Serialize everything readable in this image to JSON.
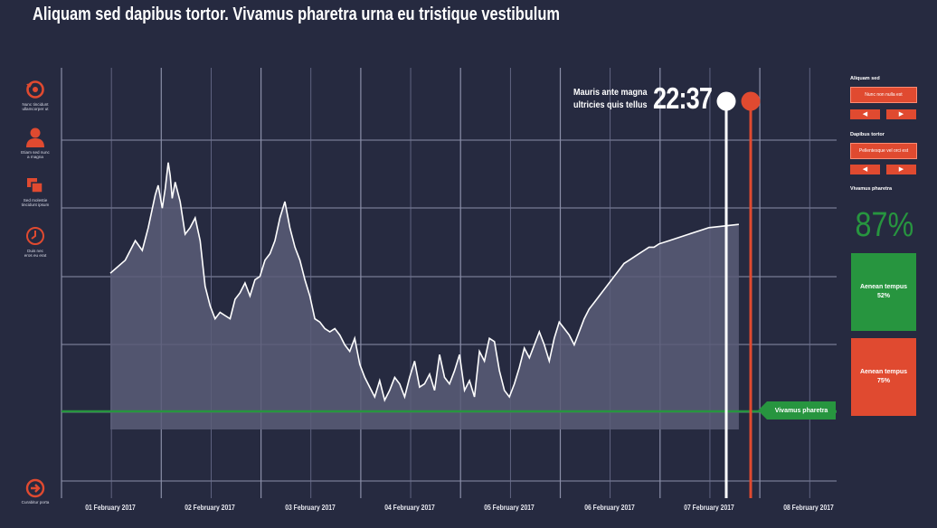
{
  "title": "Aliquam sed dapibus tortor. Vivamus pharetra urna eu tristique vestibulum",
  "left_nav": {
    "items": [
      {
        "icon": "restore-icon",
        "label_1": "Nunc tincidunt",
        "label_2": "ullamcorper ut"
      },
      {
        "icon": "user-icon",
        "label_1": "Etiam sed nunc",
        "label_2": "a magna"
      },
      {
        "icon": "windows-icon",
        "label_1": "Sed molestie",
        "label_2": "tincidunt ipsum"
      },
      {
        "icon": "clock-icon",
        "label_1": "Duis nec",
        "label_2": "eros eu erat"
      }
    ],
    "bottom": {
      "icon": "arrow-right-circle-icon",
      "label": "Curabitur porta"
    }
  },
  "chart_data": {
    "type": "area",
    "title": "",
    "xlabel": "",
    "ylabel": "",
    "x_tick_labels": [
      "01 February 2017",
      "02 February 2017",
      "03 February 2017",
      "04 February 2017",
      "05 February 2017",
      "06 February 2017",
      "07 February 2017",
      "08 February 2017"
    ],
    "grid": true,
    "y_axis_labels_shown": false,
    "x": [
      0.0,
      0.15,
      0.25,
      0.32,
      0.38,
      0.45,
      0.48,
      0.52,
      0.55,
      0.58,
      0.6,
      0.62,
      0.65,
      0.7,
      0.75,
      0.8,
      0.85,
      0.9,
      0.95,
      1.0,
      1.05,
      1.1,
      1.15,
      1.2,
      1.25,
      1.3,
      1.35,
      1.4,
      1.45,
      1.5,
      1.55,
      1.6,
      1.65,
      1.7,
      1.75,
      1.8,
      1.85,
      1.9,
      1.95,
      2.0,
      2.05,
      2.1,
      2.15,
      2.2,
      2.25,
      2.3,
      2.35,
      2.4,
      2.45,
      2.5,
      2.55,
      2.6,
      2.65,
      2.7,
      2.75,
      2.8,
      2.85,
      2.9,
      2.95,
      3.0,
      3.05,
      3.1,
      3.15,
      3.2,
      3.25,
      3.3,
      3.35,
      3.4,
      3.45,
      3.5,
      3.55,
      3.6,
      3.65,
      3.7,
      3.75,
      3.8,
      3.85,
      3.9,
      3.95,
      4.0,
      4.05,
      4.1,
      4.15,
      4.2,
      4.25,
      4.3,
      4.35,
      4.4,
      4.45,
      4.5,
      4.55,
      4.6,
      4.65,
      4.7,
      4.75,
      4.8,
      4.85,
      4.9,
      4.95,
      5.0,
      5.05,
      5.1,
      5.15,
      5.2,
      5.25,
      5.3,
      5.35,
      5.4,
      5.45,
      5.5,
      5.6,
      5.7,
      5.8,
      5.9,
      6.0,
      6.3
    ],
    "values": [
      48,
      52,
      58,
      55,
      62,
      72,
      75,
      68,
      74,
      82,
      78,
      71,
      76,
      70,
      60,
      62,
      65,
      58,
      44,
      38,
      34,
      36,
      35,
      34,
      40,
      42,
      45,
      41,
      46,
      47,
      52,
      54,
      58,
      65,
      70,
      62,
      56,
      52,
      46,
      41,
      34,
      33,
      31,
      30,
      31,
      29,
      26,
      24,
      28,
      20,
      16,
      13,
      10,
      15,
      9,
      12,
      16,
      14,
      10,
      16,
      21,
      13,
      14,
      17,
      12,
      23,
      16,
      14,
      18,
      23,
      12,
      15,
      10,
      24,
      21,
      28,
      27,
      18,
      12,
      10,
      14,
      19,
      25,
      22,
      26,
      30,
      26,
      21,
      28,
      33,
      31,
      29,
      26,
      30,
      34,
      37,
      39,
      41,
      43,
      45,
      47,
      49,
      51,
      52,
      53,
      54,
      55,
      56,
      56,
      57,
      58,
      59,
      60,
      61,
      62,
      63
    ]
  },
  "clock": {
    "line_1": "Mauris ante magna",
    "line_2": "ultricies quis tellus",
    "time": "22:37"
  },
  "level_marker": {
    "label": "Vivamus pharetra"
  },
  "right_panel": {
    "section_1": {
      "label": "Aliquam sed",
      "button": "Nunc non nulla est"
    },
    "section_2": {
      "label": "Dapibus tortor",
      "button": "Pellentesque vel orci est"
    },
    "section_3": {
      "label": "Vivamus pharetra"
    },
    "percent": "87%",
    "stat_green": {
      "title": "Aenean tempus",
      "value": "52%"
    },
    "stat_red": {
      "title": "Aenean tempus",
      "value": "75%"
    }
  },
  "colors": {
    "background": "#262a40",
    "accent_red": "#e04a30",
    "accent_green": "#27953f",
    "grid": "#8a8ea8",
    "area_fill": "#5a5d78"
  }
}
